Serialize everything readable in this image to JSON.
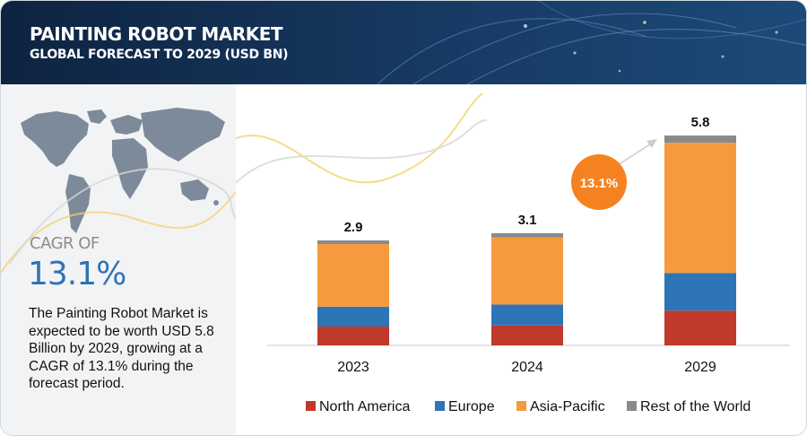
{
  "header": {
    "title": "PAINTING ROBOT MARKET",
    "subtitle": "GLOBAL FORECAST TO 2029 (USD BN)"
  },
  "sidebar": {
    "cagr_label": "CAGR OF",
    "cagr_value": "13.1%",
    "description": "The Painting Robot Market is expected to be worth USD 5.8 Billion by 2029, growing at a CAGR of 13.1% during the forecast period."
  },
  "growth_badge": {
    "label": "13.1%",
    "color": "#f58220"
  },
  "chart_data": {
    "type": "bar",
    "stacked": true,
    "categories": [
      "2023",
      "2024",
      "2029"
    ],
    "totals": [
      "2.9",
      "3.1",
      "5.8"
    ],
    "series": [
      {
        "name": "North America",
        "color": "#c0392b",
        "values": [
          0.52,
          0.55,
          0.96
        ]
      },
      {
        "name": "Europe",
        "color": "#2e75b6",
        "values": [
          0.55,
          0.58,
          1.04
        ]
      },
      {
        "name": "Asia-Pacific",
        "color": "#f79a3e",
        "values": [
          1.73,
          1.85,
          3.6
        ]
      },
      {
        "name": "Rest of the World",
        "color": "#8a8a8a",
        "values": [
          0.1,
          0.12,
          0.2
        ]
      }
    ],
    "ylim": [
      0,
      6.0
    ],
    "legend_position": "bottom",
    "grid": false
  }
}
